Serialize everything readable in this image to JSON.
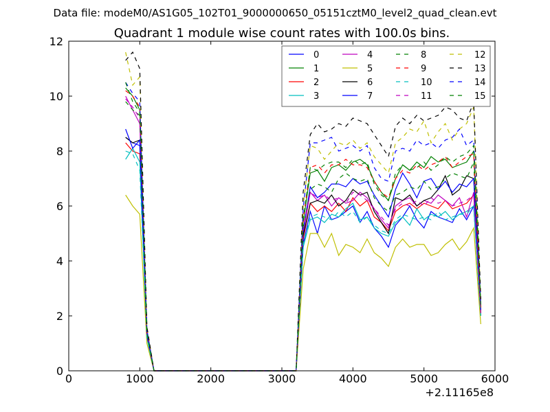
{
  "figure": {
    "supertitle": "Data file: modeM0/AS1G05_102T01_9000000650_05151cztM0_level2_quad_clean.evt"
  },
  "chart_data": {
    "type": "line",
    "title": "Quadrant 1 module wise count rates with 100.0s bins.",
    "xlabel": "",
    "ylabel": "",
    "xlim": [
      0,
      6000
    ],
    "ylim": [
      0,
      12
    ],
    "xticks": [
      "0",
      "1000",
      "2000",
      "3000",
      "4000",
      "5000",
      "6000"
    ],
    "yticks": [
      "0",
      "2",
      "4",
      "6",
      "8",
      "10",
      "12"
    ],
    "x_offset_label": "+2.11165e8",
    "grid": false,
    "legend_position": "top-right",
    "legend_columns": 4,
    "x": [
      800,
      900,
      1000,
      1100,
      1200,
      1300,
      1400,
      1500,
      1600,
      1700,
      1800,
      1900,
      2000,
      2100,
      2200,
      2300,
      2400,
      2500,
      2600,
      2700,
      2800,
      2900,
      3000,
      3100,
      3200,
      3300,
      3400,
      3500,
      3600,
      3700,
      3800,
      3900,
      4000,
      4100,
      4200,
      4300,
      4400,
      4500,
      4600,
      4700,
      4800,
      4900,
      5000,
      5100,
      5200,
      5300,
      5400,
      5500,
      5600,
      5700,
      5800
    ],
    "series": [
      {
        "name": "0",
        "color": "#0000ff",
        "dash": "solid",
        "values": [
          8.5,
          8.3,
          8.2,
          1.3,
          0,
          0,
          0,
          0,
          0,
          0,
          0,
          0,
          0,
          0,
          0,
          0,
          0,
          0,
          0,
          0,
          0,
          0,
          0,
          0,
          0,
          4.6,
          5.8,
          5.0,
          6.0,
          5.5,
          5.6,
          5.8,
          6.0,
          5.4,
          5.8,
          5.2,
          4.9,
          4.5,
          5.3,
          5.6,
          6.0,
          5.5,
          5.2,
          5.8,
          5.6,
          5.5,
          5.4,
          5.9,
          5.5,
          6.0,
          2.0
        ]
      },
      {
        "name": "1",
        "color": "#008000",
        "dash": "solid",
        "values": [
          10.3,
          10.0,
          9.5,
          1.4,
          0,
          0,
          0,
          0,
          0,
          0,
          0,
          0,
          0,
          0,
          0,
          0,
          0,
          0,
          0,
          0,
          0,
          0,
          0,
          0,
          0,
          5.4,
          7.2,
          7.3,
          6.9,
          7.4,
          7.5,
          7.3,
          7.6,
          7.7,
          7.5,
          6.9,
          6.5,
          6.2,
          7.0,
          7.5,
          7.3,
          7.6,
          7.4,
          7.8,
          7.6,
          7.7,
          7.4,
          7.5,
          7.6,
          8.0,
          2.1
        ]
      },
      {
        "name": "2",
        "color": "#ff0000",
        "dash": "solid",
        "values": [
          8.3,
          8.0,
          7.9,
          1.3,
          0,
          0,
          0,
          0,
          0,
          0,
          0,
          0,
          0,
          0,
          0,
          0,
          0,
          0,
          0,
          0,
          0,
          0,
          0,
          0,
          0,
          4.8,
          6.1,
          5.8,
          6.0,
          5.8,
          6.1,
          5.8,
          6.3,
          6.0,
          6.2,
          5.6,
          5.4,
          5.1,
          5.8,
          6.0,
          6.1,
          5.9,
          6.1,
          6.0,
          5.9,
          6.2,
          5.9,
          6.0,
          6.1,
          6.4,
          2.1
        ]
      },
      {
        "name": "3",
        "color": "#00bfbf",
        "dash": "solid",
        "values": [
          7.7,
          8.1,
          7.6,
          1.2,
          0,
          0,
          0,
          0,
          0,
          0,
          0,
          0,
          0,
          0,
          0,
          0,
          0,
          0,
          0,
          0,
          0,
          0,
          0,
          0,
          0,
          4.5,
          5.5,
          5.6,
          5.4,
          5.7,
          5.6,
          5.9,
          6.1,
          5.5,
          5.6,
          5.2,
          5.0,
          4.9,
          5.4,
          5.6,
          5.3,
          5.9,
          5.5,
          5.7,
          5.6,
          5.8,
          5.5,
          5.7,
          5.8,
          6.0,
          2.0
        ]
      },
      {
        "name": "4",
        "color": "#bf00bf",
        "dash": "solid",
        "values": [
          10.0,
          9.5,
          9.0,
          1.4,
          0,
          0,
          0,
          0,
          0,
          0,
          0,
          0,
          0,
          0,
          0,
          0,
          0,
          0,
          0,
          0,
          0,
          0,
          0,
          0,
          0,
          5.0,
          6.5,
          6.2,
          6.4,
          6.0,
          6.3,
          6.1,
          6.2,
          6.5,
          6.3,
          5.9,
          5.5,
          5.2,
          6.0,
          6.2,
          6.3,
          6.0,
          6.2,
          6.1,
          6.4,
          6.2,
          6.0,
          6.3,
          5.6,
          6.5,
          2.2
        ]
      },
      {
        "name": "5",
        "color": "#bfbf00",
        "dash": "solid",
        "values": [
          6.4,
          6.0,
          5.7,
          1.0,
          0,
          0,
          0,
          0,
          0,
          0,
          0,
          0,
          0,
          0,
          0,
          0,
          0,
          0,
          0,
          0,
          0,
          0,
          0,
          0,
          0,
          3.7,
          5.0,
          5.0,
          4.5,
          5.0,
          4.2,
          4.6,
          4.5,
          4.3,
          4.8,
          4.3,
          4.1,
          3.8,
          4.5,
          4.8,
          4.5,
          4.6,
          4.6,
          4.2,
          4.3,
          4.6,
          4.8,
          4.4,
          4.7,
          5.2,
          1.7
        ]
      },
      {
        "name": "6",
        "color": "#000000",
        "dash": "solid",
        "values": [
          8.5,
          8.3,
          8.4,
          1.3,
          0,
          0,
          0,
          0,
          0,
          0,
          0,
          0,
          0,
          0,
          0,
          0,
          0,
          0,
          0,
          0,
          0,
          0,
          0,
          0,
          0,
          4.9,
          6.1,
          6.2,
          6.1,
          6.4,
          6.0,
          6.2,
          6.6,
          6.4,
          6.5,
          5.8,
          5.4,
          5.0,
          6.3,
          6.2,
          6.4,
          6.0,
          6.2,
          6.3,
          6.6,
          7.1,
          6.4,
          6.6,
          7.1,
          7.0,
          2.3
        ]
      },
      {
        "name": "7",
        "color": "#0000ff",
        "dash": "solid",
        "values": [
          8.8,
          8.1,
          8.4,
          1.3,
          0,
          0,
          0,
          0,
          0,
          0,
          0,
          0,
          0,
          0,
          0,
          0,
          0,
          0,
          0,
          0,
          0,
          0,
          0,
          0,
          0,
          5.1,
          6.7,
          6.3,
          6.5,
          6.8,
          6.8,
          6.7,
          7.0,
          6.8,
          6.9,
          6.4,
          6.0,
          5.6,
          6.6,
          7.2,
          6.8,
          6.3,
          6.9,
          7.0,
          6.6,
          6.9,
          6.5,
          6.8,
          6.7,
          7.0,
          2.2
        ]
      },
      {
        "name": "8",
        "color": "#008000",
        "dash": "dashed",
        "values": [
          9.8,
          9.5,
          9.3,
          1.4,
          0,
          0,
          0,
          0,
          0,
          0,
          0,
          0,
          0,
          0,
          0,
          0,
          0,
          0,
          0,
          0,
          0,
          0,
          0,
          0,
          0,
          5.2,
          6.6,
          6.8,
          6.7,
          6.5,
          7.0,
          7.2,
          7.0,
          6.9,
          7.0,
          6.3,
          6.0,
          5.8,
          6.4,
          6.5,
          6.7,
          6.6,
          6.9,
          6.6,
          6.7,
          7.0,
          7.2,
          7.1,
          7.0,
          7.6,
          2.3
        ]
      },
      {
        "name": "9",
        "color": "#ff0000",
        "dash": "dashed",
        "values": [
          10.2,
          10.0,
          9.6,
          1.4,
          0,
          0,
          0,
          0,
          0,
          0,
          0,
          0,
          0,
          0,
          0,
          0,
          0,
          0,
          0,
          0,
          0,
          0,
          0,
          0,
          0,
          5.5,
          7.4,
          7.5,
          7.2,
          7.5,
          7.5,
          7.7,
          7.5,
          7.5,
          7.4,
          6.9,
          6.5,
          6.3,
          7.0,
          7.3,
          7.2,
          7.5,
          7.3,
          7.5,
          7.6,
          7.8,
          7.4,
          7.6,
          7.8,
          7.9,
          2.3
        ]
      },
      {
        "name": "10",
        "color": "#00bfbf",
        "dash": "dashed",
        "values": [
          8.0,
          7.9,
          7.3,
          1.2,
          0,
          0,
          0,
          0,
          0,
          0,
          0,
          0,
          0,
          0,
          0,
          0,
          0,
          0,
          0,
          0,
          0,
          0,
          0,
          0,
          0,
          4.6,
          5.6,
          5.7,
          5.6,
          5.5,
          5.8,
          5.6,
          5.8,
          5.4,
          5.6,
          5.3,
          5.1,
          5.0,
          5.5,
          5.7,
          5.6,
          5.5,
          5.6,
          5.5,
          5.8,
          5.5,
          5.6,
          5.7,
          5.7,
          6.0,
          2.0
        ]
      },
      {
        "name": "11",
        "color": "#bf00bf",
        "dash": "dashed",
        "values": [
          9.9,
          9.6,
          9.2,
          1.4,
          0,
          0,
          0,
          0,
          0,
          0,
          0,
          0,
          0,
          0,
          0,
          0,
          0,
          0,
          0,
          0,
          0,
          0,
          0,
          0,
          0,
          5.2,
          6.5,
          6.3,
          6.4,
          6.2,
          6.3,
          6.1,
          6.5,
          6.4,
          6.2,
          5.9,
          5.6,
          5.3,
          5.9,
          6.1,
          6.0,
          6.2,
          6.0,
          6.3,
          6.1,
          6.2,
          6.0,
          6.1,
          6.2,
          6.4,
          2.1
        ]
      },
      {
        "name": "12",
        "color": "#bfbf00",
        "dash": "dashed",
        "values": [
          11.6,
          10.4,
          10.7,
          1.6,
          0,
          0,
          0,
          0,
          0,
          0,
          0,
          0,
          0,
          0,
          0,
          0,
          0,
          0,
          0,
          0,
          0,
          0,
          0,
          0,
          0,
          6.0,
          8.2,
          8.1,
          7.7,
          8.0,
          8.3,
          8.2,
          8.4,
          8.1,
          8.3,
          7.8,
          7.5,
          7.2,
          8.3,
          8.5,
          8.8,
          8.7,
          9.1,
          8.3,
          8.7,
          9.0,
          8.4,
          8.8,
          9.0,
          9.6,
          2.5
        ]
      },
      {
        "name": "13",
        "color": "#000000",
        "dash": "dashed",
        "values": [
          11.3,
          11.6,
          11.0,
          1.6,
          0,
          0,
          0,
          0,
          0,
          0,
          0,
          0,
          0,
          0,
          0,
          0,
          0,
          0,
          0,
          0,
          0,
          0,
          0,
          0,
          0,
          6.5,
          8.6,
          9.0,
          8.7,
          8.8,
          9.0,
          8.9,
          9.2,
          9.1,
          9.0,
          8.6,
          8.2,
          7.8,
          8.9,
          9.2,
          9.0,
          9.3,
          9.1,
          9.2,
          9.3,
          9.6,
          9.5,
          9.2,
          9.1,
          9.8,
          2.6
        ]
      },
      {
        "name": "14",
        "color": "#0000ff",
        "dash": "dashed",
        "values": [
          10.5,
          10.1,
          9.8,
          1.5,
          0,
          0,
          0,
          0,
          0,
          0,
          0,
          0,
          0,
          0,
          0,
          0,
          0,
          0,
          0,
          0,
          0,
          0,
          0,
          0,
          0,
          5.9,
          8.3,
          8.3,
          8.4,
          8.5,
          8.0,
          8.1,
          8.2,
          8.0,
          8.2,
          7.4,
          7.0,
          6.9,
          8.0,
          8.1,
          8.0,
          8.4,
          8.2,
          8.3,
          8.1,
          8.4,
          8.5,
          8.8,
          8.2,
          8.4,
          2.4
        ]
      },
      {
        "name": "15",
        "color": "#008000",
        "dash": "dashed",
        "values": [
          10.5,
          9.8,
          9.4,
          1.4,
          0,
          0,
          0,
          0,
          0,
          0,
          0,
          0,
          0,
          0,
          0,
          0,
          0,
          0,
          0,
          0,
          0,
          0,
          0,
          0,
          0,
          5.5,
          7.4,
          7.3,
          7.5,
          7.6,
          7.6,
          7.4,
          7.7,
          7.5,
          7.6,
          6.8,
          6.4,
          6.2,
          7.2,
          7.5,
          7.3,
          7.4,
          7.6,
          7.3,
          7.5,
          7.8,
          7.6,
          7.8,
          7.9,
          8.2,
          2.4
        ]
      }
    ]
  }
}
